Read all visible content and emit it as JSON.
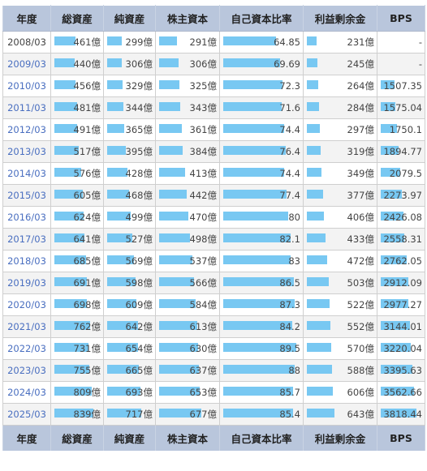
{
  "headers": [
    "年度",
    "総資産",
    "純資産",
    "株主資本",
    "自己資本比率",
    "利益剰余金",
    "BPS"
  ],
  "bar_color": "#78c8f2",
  "header_bg": "#b9c6dc",
  "link_color": "#4a6fc0",
  "bar_max": {
    "total_assets": 839,
    "net_assets": 717,
    "equity": 677,
    "equity_ratio": 89.5,
    "retained": 643,
    "bps": 3818.44
  },
  "rows": [
    {
      "year": "2008/03",
      "link": false,
      "total_assets": "461億",
      "net_assets": "299億",
      "equity": "291億",
      "equity_ratio": "64.85",
      "retained": "231億",
      "bps": "-"
    },
    {
      "year": "2009/03",
      "link": true,
      "total_assets": "440億",
      "net_assets": "306億",
      "equity": "306億",
      "equity_ratio": "69.69",
      "retained": "245億",
      "bps": "-"
    },
    {
      "year": "2010/03",
      "link": true,
      "total_assets": "456億",
      "net_assets": "329億",
      "equity": "325億",
      "equity_ratio": "72.3",
      "retained": "264億",
      "bps": "1507.35"
    },
    {
      "year": "2011/03",
      "link": true,
      "total_assets": "481億",
      "net_assets": "344億",
      "equity": "343億",
      "equity_ratio": "71.6",
      "retained": "284億",
      "bps": "1575.04"
    },
    {
      "year": "2012/03",
      "link": true,
      "total_assets": "491億",
      "net_assets": "365億",
      "equity": "361億",
      "equity_ratio": "74.4",
      "retained": "297億",
      "bps": "1750.1"
    },
    {
      "year": "2013/03",
      "link": true,
      "total_assets": "517億",
      "net_assets": "395億",
      "equity": "384億",
      "equity_ratio": "76.4",
      "retained": "319億",
      "bps": "1894.77"
    },
    {
      "year": "2014/03",
      "link": true,
      "total_assets": "576億",
      "net_assets": "428億",
      "equity": "413億",
      "equity_ratio": "74.4",
      "retained": "349億",
      "bps": "2079.5"
    },
    {
      "year": "2015/03",
      "link": true,
      "total_assets": "605億",
      "net_assets": "468億",
      "equity": "442億",
      "equity_ratio": "77.4",
      "retained": "377億",
      "bps": "2273.97"
    },
    {
      "year": "2016/03",
      "link": true,
      "total_assets": "624億",
      "net_assets": "499億",
      "equity": "470億",
      "equity_ratio": "80",
      "retained": "406億",
      "bps": "2426.08"
    },
    {
      "year": "2017/03",
      "link": true,
      "total_assets": "641億",
      "net_assets": "527億",
      "equity": "498億",
      "equity_ratio": "82.1",
      "retained": "433億",
      "bps": "2558.31"
    },
    {
      "year": "2018/03",
      "link": true,
      "total_assets": "685億",
      "net_assets": "569億",
      "equity": "537億",
      "equity_ratio": "83",
      "retained": "472億",
      "bps": "2762.05"
    },
    {
      "year": "2019/03",
      "link": true,
      "total_assets": "691億",
      "net_assets": "598億",
      "equity": "566億",
      "equity_ratio": "86.5",
      "retained": "503億",
      "bps": "2912.09"
    },
    {
      "year": "2020/03",
      "link": true,
      "total_assets": "698億",
      "net_assets": "609億",
      "equity": "584億",
      "equity_ratio": "87.3",
      "retained": "522億",
      "bps": "2977.27"
    },
    {
      "year": "2021/03",
      "link": true,
      "total_assets": "762億",
      "net_assets": "642億",
      "equity": "613億",
      "equity_ratio": "84.2",
      "retained": "552億",
      "bps": "3144.01"
    },
    {
      "year": "2022/03",
      "link": true,
      "total_assets": "731億",
      "net_assets": "654億",
      "equity": "630億",
      "equity_ratio": "89.5",
      "retained": "570億",
      "bps": "3220.04"
    },
    {
      "year": "2023/03",
      "link": true,
      "total_assets": "755億",
      "net_assets": "665億",
      "equity": "637億",
      "equity_ratio": "88",
      "retained": "588億",
      "bps": "3395.63"
    },
    {
      "year": "2024/03",
      "link": true,
      "total_assets": "809億",
      "net_assets": "693億",
      "equity": "653億",
      "equity_ratio": "85.7",
      "retained": "606億",
      "bps": "3562.66"
    },
    {
      "year": "2025/03",
      "link": true,
      "total_assets": "839億",
      "net_assets": "717億",
      "equity": "677億",
      "equity_ratio": "85.4",
      "retained": "643億",
      "bps": "3818.44"
    }
  ]
}
